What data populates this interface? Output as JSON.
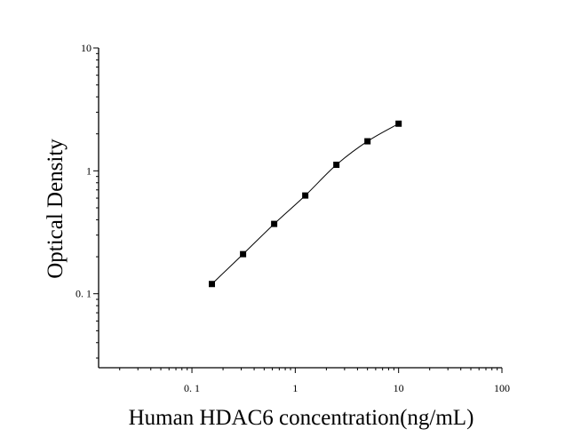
{
  "chart_data": {
    "type": "scatter",
    "title": "",
    "xlabel": "Human HDAC6 concentration(ng/mL)",
    "ylabel": "Optical Density",
    "x_scale": "log",
    "y_scale": "log",
    "xlim": [
      0.0125,
      100
    ],
    "ylim": [
      0.025,
      10
    ],
    "x_ticks": [
      {
        "value": 0.1,
        "label": "0. 1"
      },
      {
        "value": 1,
        "label": "1"
      },
      {
        "value": 10,
        "label": "10"
      },
      {
        "value": 100,
        "label": "100"
      }
    ],
    "y_ticks": [
      {
        "value": 0.1,
        "label": "0. 1"
      },
      {
        "value": 1,
        "label": "1"
      },
      {
        "value": 10,
        "label": "10"
      }
    ],
    "grid": false,
    "legend": "none",
    "series": [
      {
        "marker": "square",
        "fit_line": true,
        "points": [
          {
            "x": 0.156,
            "y": 0.12
          },
          {
            "x": 0.3125,
            "y": 0.21
          },
          {
            "x": 0.625,
            "y": 0.37
          },
          {
            "x": 1.25,
            "y": 0.63
          },
          {
            "x": 2.5,
            "y": 1.12
          },
          {
            "x": 5,
            "y": 1.74
          },
          {
            "x": 10,
            "y": 2.42
          }
        ]
      }
    ],
    "colors": {
      "marker": "#000000",
      "line": "#000000",
      "axis": "#000000"
    }
  }
}
